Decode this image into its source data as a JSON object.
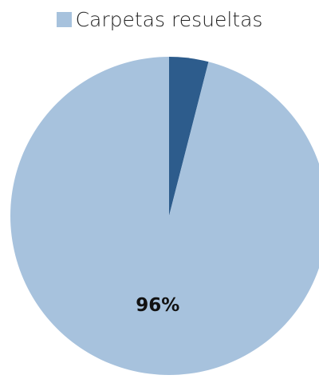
{
  "chart_data": {
    "type": "pie",
    "legend_position": "top",
    "legend": [
      {
        "label": "Carpetas resueltas",
        "color": "#a7c2dd"
      }
    ],
    "slices": [
      {
        "value": 4,
        "color": "#2d5c8c",
        "label": ""
      },
      {
        "value": 96,
        "color": "#a7c2dd",
        "label": "96%"
      }
    ]
  }
}
